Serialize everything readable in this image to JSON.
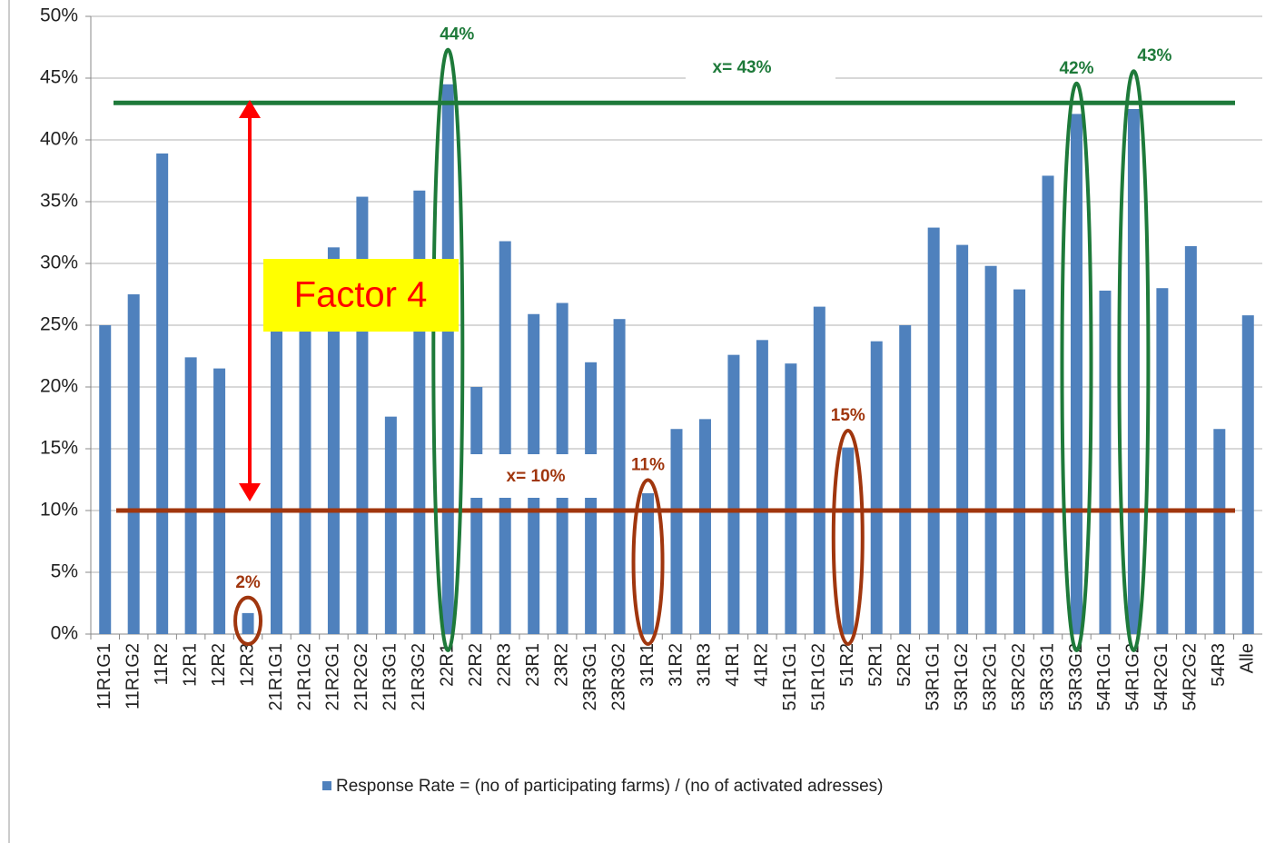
{
  "chart_data": {
    "type": "bar",
    "categories": [
      "11R1G1",
      "11R1G2",
      "11R2",
      "12R1",
      "12R2",
      "12R3",
      "21R1G1",
      "21R1G2",
      "21R2G1",
      "21R2G2",
      "21R3G1",
      "21R3G2",
      "22R1",
      "22R2",
      "22R3",
      "23R1",
      "23R2",
      "23R3G1",
      "23R3G2",
      "31R1",
      "31R2",
      "31R3",
      "41R1",
      "41R2",
      "51R1G1",
      "51R1G2",
      "51R2",
      "52R1",
      "52R2",
      "53R1G1",
      "53R1G2",
      "53R2G1",
      "53R2G2",
      "53R3G1",
      "53R3G2",
      "54R1G1",
      "54R1G2",
      "54R2G1",
      "54R2G2",
      "54R3",
      "Alle"
    ],
    "series": [
      {
        "name": "Response Rate = (no of participating farms) / (no of activated adresses)",
        "color": "#4f81bd",
        "values": [
          25.0,
          27.5,
          38.9,
          22.4,
          21.5,
          1.7,
          25.5,
          25.0,
          31.3,
          35.4,
          17.6,
          35.9,
          44.5,
          20.0,
          31.8,
          25.9,
          26.8,
          22.0,
          25.5,
          11.4,
          16.6,
          17.4,
          22.6,
          23.8,
          21.9,
          26.5,
          15.1,
          23.7,
          25.0,
          32.9,
          31.5,
          29.8,
          27.9,
          37.1,
          42.1,
          27.8,
          42.5,
          28.0,
          31.4,
          16.6,
          25.8
        ]
      }
    ],
    "ylim": [
      0,
      50
    ],
    "yticks": [
      {
        "value": 0,
        "label": "0%"
      },
      {
        "value": 5,
        "label": "5%"
      },
      {
        "value": 10,
        "label": "10%"
      },
      {
        "value": 15,
        "label": "15%"
      },
      {
        "value": 20,
        "label": "20%"
      },
      {
        "value": 25,
        "label": "25%"
      },
      {
        "value": 30,
        "label": "30%"
      },
      {
        "value": 35,
        "label": "35%"
      },
      {
        "value": 40,
        "label": "40%"
      },
      {
        "value": 45,
        "label": "45%"
      },
      {
        "value": 50,
        "label": "50%"
      }
    ],
    "grid": true,
    "legend": "bottom",
    "reference_lines": [
      {
        "label": "x= 43%",
        "value": 43,
        "color": "#1e7a3a"
      },
      {
        "label": "x= 10%",
        "value": 10,
        "color": "#a0360e"
      }
    ],
    "highlights": [
      {
        "label": "44%",
        "category": "22R1",
        "value": 44,
        "color": "#1e7a3a"
      },
      {
        "label": "42%",
        "category": "53R3G2",
        "value": 42,
        "color": "#1e7a3a"
      },
      {
        "label": "43%",
        "category": "54R1G2",
        "value": 43,
        "color": "#1e7a3a"
      },
      {
        "label": "11%",
        "category": "31R1",
        "value": 11,
        "color": "#a0360e"
      },
      {
        "label": "15%",
        "category": "51R2",
        "value": 15,
        "color": "#a0360e"
      },
      {
        "label": "2%",
        "category": "12R3",
        "value": 2,
        "color": "#a0360e"
      }
    ],
    "annotation": "Factor 4"
  }
}
